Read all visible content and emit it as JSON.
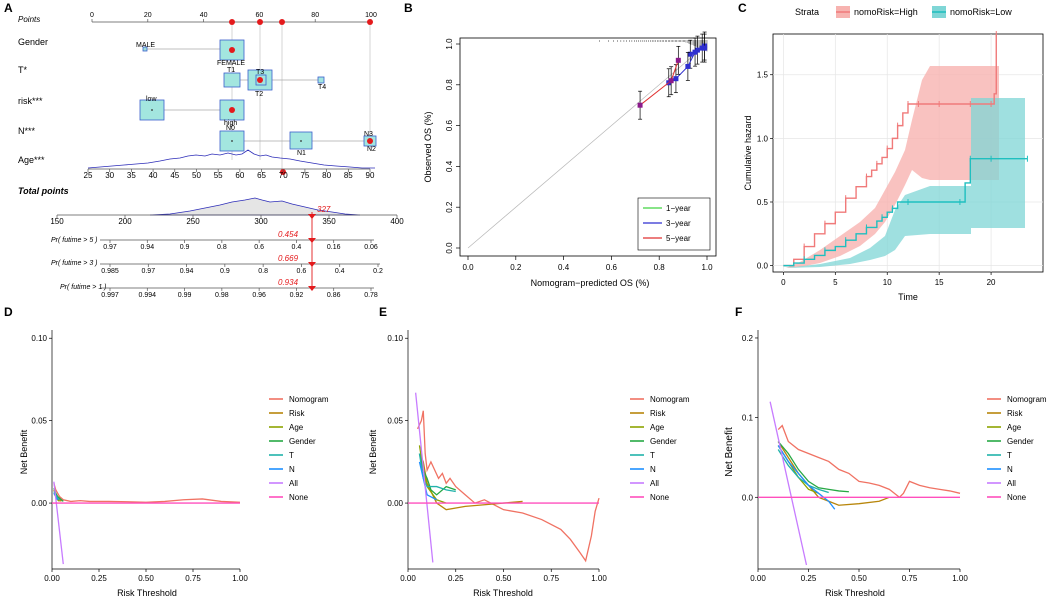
{
  "panel_labels": {
    "A": "A",
    "B": "B",
    "C": "C",
    "D": "D",
    "E": "E",
    "F": "F"
  },
  "chart_data": [
    {
      "panel": "A",
      "type": "nomogram",
      "rows": {
        "points": "Points",
        "gender": "Gender",
        "t": "T*",
        "risk": "risk***",
        "n": "N***",
        "age": "Age***",
        "total": "Total points",
        "p5": "Pr( futime > 5 )",
        "p3": "Pr( futime > 3 )",
        "p1": "Pr( futime > 1 )"
      },
      "points_ticks": [
        "0",
        "20",
        "40",
        "60",
        "80",
        "100"
      ],
      "gender_levels": [
        "MALE",
        "FEMALE"
      ],
      "t_levels": [
        "T1",
        "T3",
        "T2",
        "T4"
      ],
      "risk_levels": [
        "low",
        "high"
      ],
      "n_levels": [
        "N0",
        "N1",
        "N3",
        "N2"
      ],
      "age_ticks": [
        "25",
        "30",
        "35",
        "40",
        "45",
        "50",
        "55",
        "60",
        "65",
        "70",
        "75",
        "80",
        "85",
        "90"
      ],
      "total_ticks": [
        "150",
        "200",
        "250",
        "300",
        "350",
        "400"
      ],
      "total_value": "327",
      "p5_ticks": [
        "0.97",
        "0.94",
        "0.9",
        "0.8",
        "0.6",
        "0.4",
        "0.16",
        "0.06"
      ],
      "p3_ticks": [
        "0.985",
        "0.97",
        "0.94",
        "0.9",
        "0.8",
        "0.6",
        "0.4",
        "0.2"
      ],
      "p1_ticks": [
        "0.997",
        "0.994",
        "0.99",
        "0.98",
        "0.96",
        "0.92",
        "0.86",
        "0.78"
      ],
      "p5_value": "0.454",
      "p3_value": "0.669",
      "p1_value": "0.934",
      "marker_color": "#e41a1c"
    },
    {
      "panel": "B",
      "type": "calibration",
      "xlabel": "Nomogram−predicted OS (%)",
      "ylabel": "Observed OS (%)",
      "xlim": [
        0,
        1
      ],
      "ylim": [
        0,
        1
      ],
      "x_ticks": [
        "0.0",
        "0.2",
        "0.4",
        "0.6",
        "0.8",
        "1.0"
      ],
      "y_ticks": [
        "0.0",
        "0.2",
        "0.4",
        "0.6",
        "0.8",
        "1.0"
      ],
      "legend": [
        "1−year",
        "3−year",
        "5−year"
      ],
      "colors": [
        "#41d441",
        "#2f2fd0",
        "#e03030"
      ],
      "series": [
        {
          "name": "1−year",
          "x": [
            0.93,
            0.96,
            0.98,
            0.99
          ],
          "y": [
            0.95,
            0.97,
            0.98,
            0.99
          ]
        },
        {
          "name": "3−year",
          "x": [
            0.84,
            0.87,
            0.92,
            0.95,
            0.99
          ],
          "y": [
            0.81,
            0.83,
            0.89,
            0.96,
            0.98
          ]
        },
        {
          "name": "5−year",
          "x": [
            0.72,
            0.85,
            0.88
          ],
          "y": [
            0.7,
            0.82,
            0.92
          ]
        }
      ]
    },
    {
      "panel": "C",
      "type": "line",
      "legend_title": "Strata",
      "legend": [
        "nomoRisk=High",
        "nomoRisk=Low"
      ],
      "colors": [
        "#f07a7a",
        "#1fbfbf"
      ],
      "xlabel": "Time",
      "ylabel": "Cumulative hazard",
      "xlim": [
        -1,
        25
      ],
      "ylim": [
        -0.05,
        1.82
      ],
      "x_ticks": [
        "0",
        "5",
        "10",
        "15",
        "20"
      ],
      "y_ticks": [
        "0.0",
        "0.5",
        "1.0",
        "1.5"
      ],
      "series": [
        {
          "name": "nomoRisk=High",
          "x": [
            0,
            1,
            2,
            3,
            4,
            5,
            6,
            7,
            8,
            8.5,
            9,
            9.5,
            10,
            10.5,
            11,
            11.5,
            12,
            12.5,
            13,
            14,
            15,
            17,
            18,
            19,
            20,
            20.3,
            20.5
          ],
          "y": [
            0,
            0.05,
            0.15,
            0.25,
            0.33,
            0.42,
            0.53,
            0.62,
            0.7,
            0.75,
            0.8,
            0.85,
            0.92,
            1.0,
            1.1,
            1.2,
            1.27,
            1.27,
            1.27,
            1.27,
            1.27,
            1.27,
            1.27,
            1.27,
            1.27,
            1.35,
            1.82
          ]
        },
        {
          "name": "nomoRisk=Low",
          "x": [
            0,
            1,
            2,
            3,
            4,
            5,
            6,
            7,
            8,
            9,
            9.5,
            10,
            10.5,
            11,
            12,
            14,
            17,
            17.5,
            18,
            19,
            20,
            22,
            23.5
          ],
          "y": [
            0,
            0.02,
            0.05,
            0.08,
            0.12,
            0.15,
            0.2,
            0.25,
            0.3,
            0.35,
            0.38,
            0.42,
            0.45,
            0.5,
            0.5,
            0.5,
            0.5,
            0.65,
            0.84,
            0.84,
            0.84,
            0.84,
            0.84
          ]
        }
      ]
    },
    {
      "panel": "D",
      "type": "line",
      "xlabel": "Risk Threshold",
      "ylabel": "Net Benefit",
      "xlim": [
        0,
        1
      ],
      "ylim": [
        -0.04,
        0.105
      ],
      "x_ticks": [
        "0.00",
        "0.25",
        "0.50",
        "0.75",
        "1.00"
      ],
      "y_ticks": [
        "0.00",
        "0.05",
        "0.10"
      ],
      "legend": [
        "Nomogram",
        "Risk",
        "Age",
        "Gender",
        "T",
        "N",
        "All",
        "None"
      ],
      "colors": [
        "#f07263",
        "#b8860b",
        "#8ea400",
        "#27a844",
        "#20b2aa",
        "#1e90ff",
        "#c77cff",
        "#ff4fbd"
      ],
      "series": [
        {
          "name": "Nomogram",
          "x": [
            0.01,
            0.02,
            0.03,
            0.04,
            0.05,
            0.06,
            0.1,
            0.15,
            0.2,
            0.3,
            0.4,
            0.5,
            0.6,
            0.7,
            0.8,
            0.9,
            1.0
          ],
          "y": [
            0.012,
            0.008,
            0.006,
            0.004,
            0.003,
            0.002,
            0.001,
            0.0015,
            0.001,
            0.001,
            0.0008,
            0.0005,
            0.001,
            0.002,
            0.0025,
            0.001,
            0.0005
          ]
        },
        {
          "name": "Risk",
          "x": [
            0.01,
            0.02,
            0.03,
            0.04,
            0.05
          ],
          "y": [
            0.008,
            0.005,
            0.003,
            0.002,
            0.001
          ]
        },
        {
          "name": "Age",
          "x": [
            0.01,
            0.02,
            0.03,
            0.04
          ],
          "y": [
            0.006,
            0.004,
            0.002,
            0.001
          ]
        },
        {
          "name": "Gender",
          "x": [
            0.01,
            0.02,
            0.03,
            0.04,
            0.05,
            0.06
          ],
          "y": [
            0.009,
            0.006,
            0.004,
            0.003,
            0.002,
            0.001
          ]
        },
        {
          "name": "T",
          "x": [
            0.01,
            0.02,
            0.03,
            0.04
          ],
          "y": [
            0.007,
            0.005,
            0.003,
            0.002
          ]
        },
        {
          "name": "N",
          "x": [
            0.01,
            0.02,
            0.03
          ],
          "y": [
            0.006,
            0.004,
            0.002
          ]
        },
        {
          "name": "All",
          "x": [
            0.01,
            0.06
          ],
          "y": [
            0.013,
            -0.037
          ]
        },
        {
          "name": "None",
          "x": [
            0,
            1
          ],
          "y": [
            0,
            0
          ]
        }
      ]
    },
    {
      "panel": "E",
      "type": "line",
      "xlabel": "Risk Threshold",
      "ylabel": "Net Benefit",
      "xlim": [
        0,
        1
      ],
      "ylim": [
        -0.04,
        0.105
      ],
      "x_ticks": [
        "0.00",
        "0.25",
        "0.50",
        "0.75",
        "1.00"
      ],
      "y_ticks": [
        "0.00",
        "0.05",
        "0.10"
      ],
      "legend": [
        "Nomogram",
        "Risk",
        "Age",
        "Gender",
        "T",
        "N",
        "All",
        "None"
      ],
      "colors": [
        "#f07263",
        "#b8860b",
        "#8ea400",
        "#27a844",
        "#20b2aa",
        "#1e90ff",
        "#c77cff",
        "#ff4fbd"
      ],
      "series": [
        {
          "name": "Nomogram",
          "x": [
            0.05,
            0.07,
            0.08,
            0.09,
            0.1,
            0.12,
            0.14,
            0.16,
            0.18,
            0.2,
            0.22,
            0.25,
            0.3,
            0.35,
            0.4,
            0.5,
            0.6,
            0.7,
            0.8,
            0.85,
            0.9,
            0.93,
            0.96,
            0.98,
            1.0
          ],
          "y": [
            0.045,
            0.05,
            0.056,
            0.03,
            0.02,
            0.025,
            0.02,
            0.015,
            0.018,
            0.012,
            0.015,
            0.01,
            0.005,
            0.0,
            0.002,
            -0.004,
            -0.006,
            -0.01,
            -0.016,
            -0.022,
            -0.03,
            -0.035,
            -0.02,
            -0.005,
            0.003
          ]
        },
        {
          "name": "Risk",
          "x": [
            0.06,
            0.08,
            0.1,
            0.15,
            0.2,
            0.3,
            0.4,
            0.5,
            0.6
          ],
          "y": [
            0.03,
            0.025,
            0.012,
            0.0,
            -0.004,
            -0.002,
            -0.001,
            0.0,
            0.001
          ]
        },
        {
          "name": "Age",
          "x": [
            0.06,
            0.08,
            0.1,
            0.15,
            0.2
          ],
          "y": [
            0.035,
            0.02,
            0.01,
            0.002,
            0.0
          ]
        },
        {
          "name": "Gender",
          "x": [
            0.06,
            0.08,
            0.1,
            0.12,
            0.15,
            0.2,
            0.25
          ],
          "y": [
            0.03,
            0.02,
            0.015,
            0.008,
            0.005,
            0.01,
            0.008
          ]
        },
        {
          "name": "T",
          "x": [
            0.06,
            0.08,
            0.1,
            0.15,
            0.2,
            0.25
          ],
          "y": [
            0.03,
            0.015,
            0.01,
            0.01,
            0.008,
            0.007
          ]
        },
        {
          "name": "N",
          "x": [
            0.06,
            0.08,
            0.1,
            0.15
          ],
          "y": [
            0.025,
            0.015,
            0.005,
            0.002
          ]
        },
        {
          "name": "All",
          "x": [
            0.04,
            0.13
          ],
          "y": [
            0.067,
            -0.036
          ]
        },
        {
          "name": "None",
          "x": [
            0,
            1
          ],
          "y": [
            0,
            0
          ]
        }
      ]
    },
    {
      "panel": "F",
      "type": "line",
      "xlabel": "Risk Threshold",
      "ylabel": "Net Benefit",
      "xlim": [
        0,
        1
      ],
      "ylim": [
        -0.09,
        0.21
      ],
      "x_ticks": [
        "0.00",
        "0.25",
        "0.50",
        "0.75",
        "1.00"
      ],
      "y_ticks": [
        "0.0",
        "0.1",
        "0.2"
      ],
      "legend": [
        "Nomogram",
        "Risk",
        "Age",
        "Gender",
        "T",
        "N",
        "All",
        "None"
      ],
      "colors": [
        "#f07263",
        "#b8860b",
        "#8ea400",
        "#27a844",
        "#20b2aa",
        "#1e90ff",
        "#c77cff",
        "#ff4fbd"
      ],
      "series": [
        {
          "name": "Nomogram",
          "x": [
            0.1,
            0.12,
            0.15,
            0.2,
            0.25,
            0.3,
            0.35,
            0.4,
            0.45,
            0.5,
            0.55,
            0.6,
            0.65,
            0.7,
            0.72,
            0.75,
            0.8,
            0.85,
            0.9,
            0.95,
            1.0
          ],
          "y": [
            0.085,
            0.09,
            0.07,
            0.06,
            0.055,
            0.05,
            0.045,
            0.035,
            0.03,
            0.02,
            0.018,
            0.015,
            0.01,
            0.0,
            0.005,
            0.02,
            0.015,
            0.012,
            0.01,
            0.008,
            0.005
          ]
        },
        {
          "name": "Risk",
          "x": [
            0.1,
            0.15,
            0.2,
            0.25,
            0.3,
            0.35,
            0.4,
            0.5,
            0.6,
            0.65
          ],
          "y": [
            0.07,
            0.05,
            0.03,
            0.015,
            0.0,
            -0.005,
            -0.01,
            -0.008,
            -0.005,
            0.0
          ]
        },
        {
          "name": "Age",
          "x": [
            0.1,
            0.15,
            0.2,
            0.25,
            0.3
          ],
          "y": [
            0.065,
            0.045,
            0.025,
            0.01,
            0.005
          ]
        },
        {
          "name": "Gender",
          "x": [
            0.1,
            0.15,
            0.2,
            0.25,
            0.3,
            0.35,
            0.4,
            0.45
          ],
          "y": [
            0.07,
            0.055,
            0.035,
            0.02,
            0.012,
            0.01,
            0.008,
            0.007
          ]
        },
        {
          "name": "T",
          "x": [
            0.1,
            0.15,
            0.2,
            0.25,
            0.3,
            0.35
          ],
          "y": [
            0.06,
            0.04,
            0.025,
            0.015,
            0.01,
            0.006
          ]
        },
        {
          "name": "N",
          "x": [
            0.1,
            0.15,
            0.2,
            0.25,
            0.3,
            0.35,
            0.38
          ],
          "y": [
            0.065,
            0.045,
            0.03,
            0.015,
            0.005,
            -0.005,
            -0.015
          ]
        },
        {
          "name": "All",
          "x": [
            0.06,
            0.24
          ],
          "y": [
            0.12,
            -0.085
          ]
        },
        {
          "name": "None",
          "x": [
            0,
            1
          ],
          "y": [
            0,
            0
          ]
        }
      ]
    }
  ]
}
